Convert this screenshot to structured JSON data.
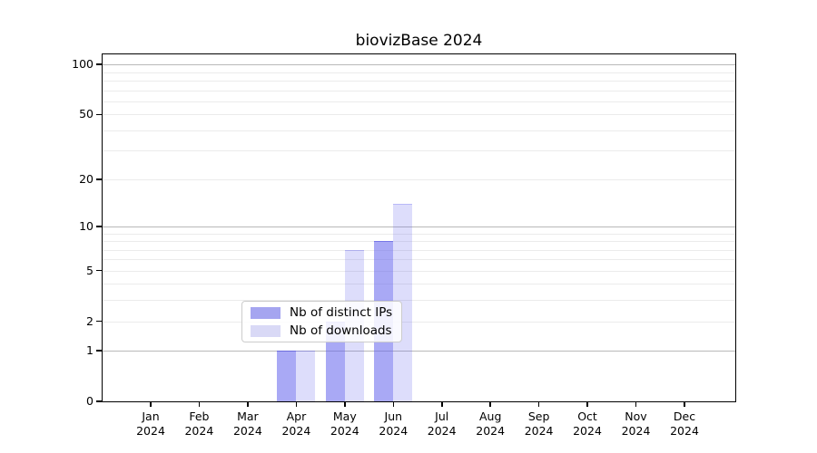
{
  "header": {
    "title": "biovizBase 2024"
  },
  "legend": {
    "items": [
      {
        "label": "Nb of distinct IPs",
        "swatch_color": "#a5a5f0"
      },
      {
        "label": "Nb of downloads",
        "swatch_color": "#d9d9f6"
      }
    ]
  },
  "chart_data": {
    "type": "bar",
    "title": "biovizBase 2024",
    "categories": [
      "Jan 2024",
      "Feb 2024",
      "Mar 2024",
      "Apr 2024",
      "May 2024",
      "Jun 2024",
      "Jul 2024",
      "Aug 2024",
      "Sep 2024",
      "Oct 2024",
      "Nov 2024",
      "Dec 2024"
    ],
    "series": [
      {
        "name": "Nb of distinct IPs",
        "values": [
          0,
          0,
          0,
          1,
          2,
          8,
          0,
          0,
          0,
          0,
          0,
          0
        ]
      },
      {
        "name": "Nb of downloads",
        "values": [
          0,
          0,
          0,
          1,
          7,
          14,
          0,
          0,
          0,
          0,
          0,
          0
        ]
      }
    ],
    "xlabel": "",
    "ylabel": "",
    "yscale": "log1p",
    "ylim": [
      0,
      115
    ],
    "yticks": [
      100,
      50,
      20,
      10,
      5,
      2,
      1,
      0
    ],
    "gridlines": {
      "major": [
        1,
        10,
        100
      ],
      "minor": [
        2,
        3,
        4,
        5,
        6,
        7,
        8,
        9,
        20,
        30,
        40,
        50,
        60,
        70,
        80,
        90
      ]
    },
    "grid": true,
    "legend_position": "lower-center-inside",
    "colors": {
      "bar_base": "#6666ee",
      "bar_distinct_ips_fill": "rgba(102,102,238,0.56)",
      "bar_downloads_fill": "rgba(102,102,238,0.22)",
      "major_grid": "#b9b9b9",
      "minor_grid": "#ebebeb",
      "axis": "#000000"
    }
  }
}
